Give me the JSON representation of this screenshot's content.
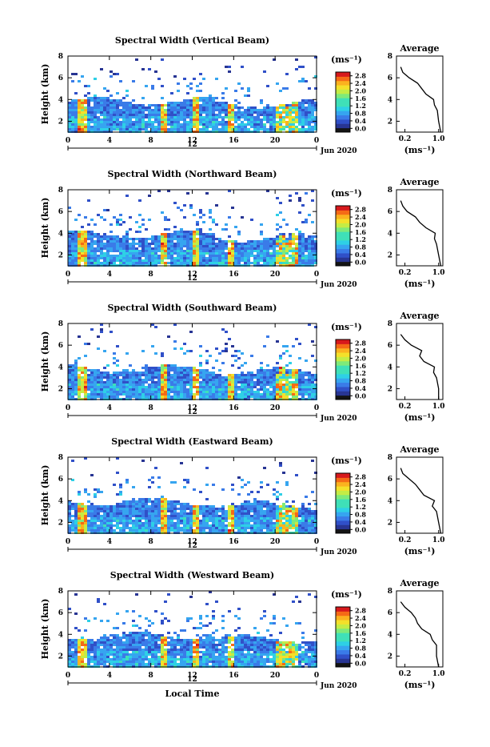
{
  "colors": {
    "colormap": [
      "#1a237e",
      "#283593",
      "#3050c8",
      "#3a7be8",
      "#36a5f0",
      "#2ed0e6",
      "#3fe0b8",
      "#7eea7a",
      "#c4ec45",
      "#f4e02a",
      "#fbb21f",
      "#f56a16",
      "#d7191c"
    ],
    "axis": "#000000",
    "lowest_bin": "#141414"
  },
  "shared": {
    "ylabel": "Height (km)",
    "units": "(ms⁻¹)",
    "avg_title": "Average",
    "avg_xlabel": "(ms⁻¹)",
    "date_label": "Jun 2020",
    "date_day": "12",
    "xlabel": "Local Time",
    "x_ticks": [
      "0",
      "4",
      "8",
      "12",
      "16",
      "20",
      "0"
    ],
    "y_ticks": [
      "2",
      "4",
      "6",
      "8"
    ],
    "colorbar_ticks": [
      "0.0",
      "0.4",
      "0.8",
      "1.2",
      "1.6",
      "2.0",
      "2.4",
      "2.8"
    ],
    "avg_x_ticks": [
      "0.2",
      "1.0"
    ],
    "avg_y_ticks": [
      "2",
      "4",
      "6",
      "8"
    ]
  },
  "chart_data": [
    {
      "type": "heatmap",
      "title": "Spectral Width (Vertical Beam)",
      "xlabel": "",
      "ylabel": "Height (km)",
      "xlim": [
        0,
        24
      ],
      "ylim": [
        1,
        8
      ],
      "zlim": [
        0,
        2.8
      ],
      "colorbar_label": "(ms⁻¹)",
      "average_profile": {
        "title": "Average",
        "xlabel": "(ms⁻¹)",
        "xlim": [
          0,
          1.1
        ],
        "ylim": [
          1,
          8
        ],
        "height": [
          1.0,
          2.0,
          3.0,
          3.5,
          4.0,
          4.5,
          5.0,
          5.5,
          6.0,
          6.5,
          7.0
        ],
        "width": [
          1.05,
          1.0,
          0.97,
          0.9,
          0.88,
          0.7,
          0.6,
          0.5,
          0.3,
          0.15,
          0.1
        ]
      }
    },
    {
      "type": "heatmap",
      "title": "Spectral Width (Northward Beam)",
      "xlabel": "",
      "ylabel": "Height (km)",
      "xlim": [
        0,
        24
      ],
      "ylim": [
        1,
        8
      ],
      "zlim": [
        0,
        2.8
      ],
      "colorbar_label": "(ms⁻¹)",
      "average_profile": {
        "title": "Average",
        "xlabel": "(ms⁻¹)",
        "xlim": [
          0,
          1.1
        ],
        "ylim": [
          1,
          8
        ],
        "height": [
          1.0,
          2.0,
          3.0,
          3.5,
          4.0,
          4.5,
          5.0,
          5.5,
          6.0,
          6.5,
          7.0
        ],
        "width": [
          1.05,
          1.0,
          0.95,
          0.9,
          0.92,
          0.7,
          0.55,
          0.45,
          0.25,
          0.15,
          0.1
        ]
      }
    },
    {
      "type": "heatmap",
      "title": "Spectral Width (Southward Beam)",
      "xlabel": "",
      "ylabel": "Height (km)",
      "xlim": [
        0,
        24
      ],
      "ylim": [
        1,
        8
      ],
      "zlim": [
        0,
        2.8
      ],
      "colorbar_label": "(ms⁻¹)",
      "average_profile": {
        "title": "Average",
        "xlabel": "(ms⁻¹)",
        "xlim": [
          0,
          1.1
        ],
        "ylim": [
          1,
          8
        ],
        "height": [
          1.0,
          2.0,
          3.0,
          3.5,
          4.0,
          4.5,
          5.0,
          5.5,
          6.0,
          6.5,
          7.0
        ],
        "width": [
          1.0,
          1.0,
          0.95,
          0.88,
          0.9,
          0.65,
          0.55,
          0.6,
          0.35,
          0.2,
          0.1
        ]
      }
    },
    {
      "type": "heatmap",
      "title": "Spectral Width (Eastward Beam)",
      "xlabel": "",
      "ylabel": "Height (km)",
      "xlim": [
        0,
        24
      ],
      "ylim": [
        1,
        8
      ],
      "zlim": [
        0,
        2.8
      ],
      "colorbar_label": "(ms⁻¹)",
      "average_profile": {
        "title": "Average",
        "xlabel": "(ms⁻¹)",
        "xlim": [
          0,
          1.1
        ],
        "ylim": [
          1,
          8
        ],
        "height": [
          1.0,
          2.0,
          3.0,
          3.5,
          4.0,
          4.5,
          5.0,
          5.5,
          6.0,
          6.5,
          7.0
        ],
        "width": [
          1.05,
          1.0,
          0.95,
          0.85,
          0.9,
          0.65,
          0.55,
          0.45,
          0.3,
          0.15,
          0.1
        ]
      }
    },
    {
      "type": "heatmap",
      "title": "Spectral Width (Westward Beam)",
      "xlabel": "Local Time",
      "ylabel": "Height (km)",
      "xlim": [
        0,
        24
      ],
      "ylim": [
        1,
        8
      ],
      "zlim": [
        0,
        2.8
      ],
      "colorbar_label": "(ms⁻¹)",
      "average_profile": {
        "title": "Average",
        "xlabel": "(ms⁻¹)",
        "xlim": [
          0,
          1.1
        ],
        "ylim": [
          1,
          8
        ],
        "height": [
          1.0,
          2.0,
          3.0,
          3.5,
          4.0,
          4.5,
          5.0,
          5.5,
          6.0,
          6.5,
          7.0
        ],
        "width": [
          1.0,
          0.95,
          0.95,
          0.85,
          0.8,
          0.6,
          0.5,
          0.45,
          0.35,
          0.2,
          0.1
        ]
      }
    }
  ]
}
